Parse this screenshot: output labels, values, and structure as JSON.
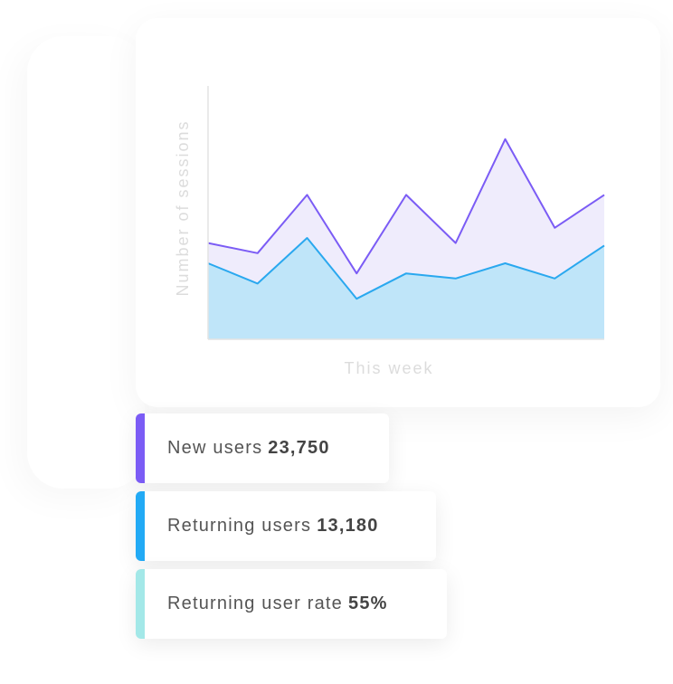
{
  "chart_data": {
    "type": "area",
    "y_label": "Number of sessions",
    "x_label": "This week",
    "x": [
      0,
      1,
      2,
      3,
      4,
      5,
      6,
      7,
      8
    ],
    "xlim": [
      0,
      8
    ],
    "ylim": [
      0,
      100
    ],
    "series": [
      {
        "color": "#7b5cf5",
        "fill": "#efecfc",
        "values": [
          38,
          34,
          57,
          26,
          57,
          38,
          79,
          44,
          57
        ]
      },
      {
        "color": "#2aa8ef",
        "fill": "#bfe5f9",
        "values": [
          30,
          22,
          40,
          16,
          26,
          24,
          30,
          24,
          37
        ]
      }
    ]
  },
  "stats": [
    {
      "label": "New users",
      "value": "23,750",
      "color": "#7b5cf5"
    },
    {
      "label": "Returning users",
      "value": "13,180",
      "color": "#22aaf5"
    },
    {
      "label": "Returning user rate",
      "value": "55%",
      "color": "#a3e8e8"
    }
  ]
}
